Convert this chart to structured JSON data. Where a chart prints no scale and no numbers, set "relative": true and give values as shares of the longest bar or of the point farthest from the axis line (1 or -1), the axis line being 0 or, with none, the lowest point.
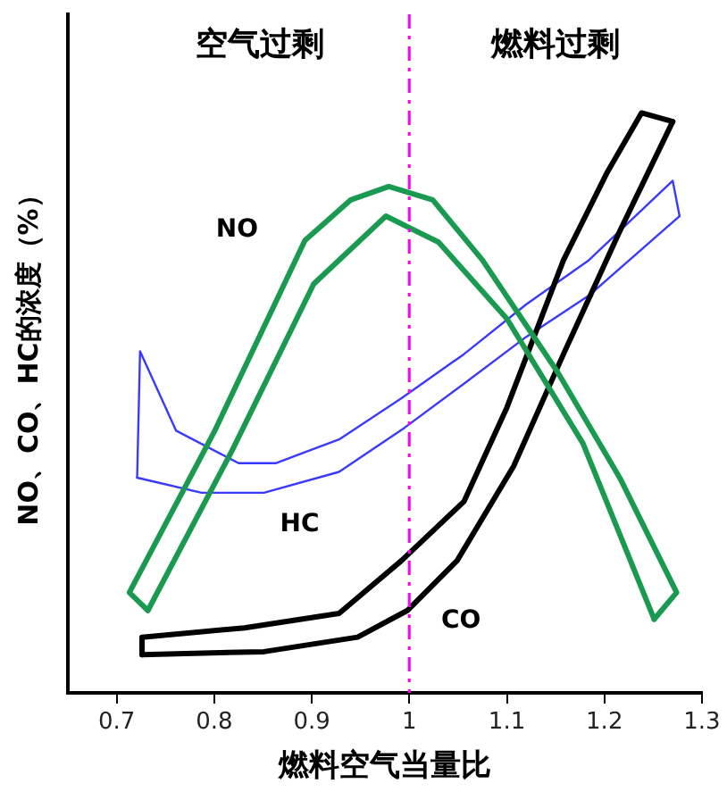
{
  "chart_data": {
    "type": "line",
    "relative": true,
    "xlabel": "燃料空气当量比",
    "ylabel": "NO、CO、HC的浓度（%）",
    "xlim": [
      0.65,
      1.3
    ],
    "xticks": [
      0.7,
      0.8,
      0.9,
      1,
      1.1,
      1.2,
      1.3
    ],
    "grid": false,
    "legend": false,
    "marker": "none",
    "line_style": "solid",
    "series": [
      {
        "name": "NO",
        "color": "#1a9a50",
        "x": [
          0.732,
          0.713,
          0.8,
          0.893,
          0.94,
          0.979,
          1.024,
          1.075,
          1.152,
          1.216,
          1.274,
          1.251
        ],
        "values": [
          0.142,
          0.173,
          0.45,
          0.78,
          0.85,
          0.873,
          0.85,
          0.746,
          0.553,
          0.37,
          0.173,
          0.127
        ]
      },
      {
        "color": "#1a9a50",
        "x": [
          0.732,
          0.819,
          0.902,
          0.976,
          1.03,
          1.1,
          1.178,
          1.251
        ],
        "values": [
          0.142,
          0.42,
          0.705,
          0.822,
          0.777,
          0.645,
          0.43,
          0.127
        ]
      },
      {
        "color": "#000000",
        "x": [
          0.726,
          0.726,
          0.831,
          0.928,
          0.992,
          1.056,
          1.1,
          1.158,
          1.203,
          1.238,
          1.27
        ],
        "values": [
          0.066,
          0.096,
          0.112,
          0.137,
          0.228,
          0.33,
          0.492,
          0.746,
          0.898,
          1.0,
          0.985
        ]
      },
      {
        "name": "CO",
        "color": "#000000",
        "x": [
          0.726,
          0.851,
          0.947,
          0.998,
          1.049,
          1.107,
          1.158,
          1.216,
          1.27
        ],
        "values": [
          0.066,
          0.071,
          0.096,
          0.142,
          0.228,
          0.391,
          0.584,
          0.797,
          0.985
        ]
      },
      {
        "color": "#3a3aff",
        "x": [
          0.721,
          0.724,
          0.761,
          0.825,
          0.863,
          0.928,
          0.992,
          1.056,
          1.12,
          1.184,
          1.27,
          1.277
        ],
        "values": [
          0.371,
          0.589,
          0.452,
          0.396,
          0.396,
          0.437,
          0.508,
          0.584,
          0.67,
          0.746,
          0.883,
          0.822
        ]
      },
      {
        "name": "HC",
        "color": "#3a3aff",
        "x": [
          0.721,
          0.787,
          0.851,
          0.928,
          0.995,
          1.056,
          1.12,
          1.184,
          1.277
        ],
        "values": [
          0.371,
          0.345,
          0.345,
          0.381,
          0.457,
          0.533,
          0.614,
          0.685,
          0.822
        ]
      }
    ],
    "ref_lines": [
      {
        "axis": "x",
        "value": 1,
        "color": "#ff00ff",
        "line_style": "dashed"
      }
    ],
    "annotations": [
      "空气过剩",
      "燃料过剩"
    ]
  }
}
